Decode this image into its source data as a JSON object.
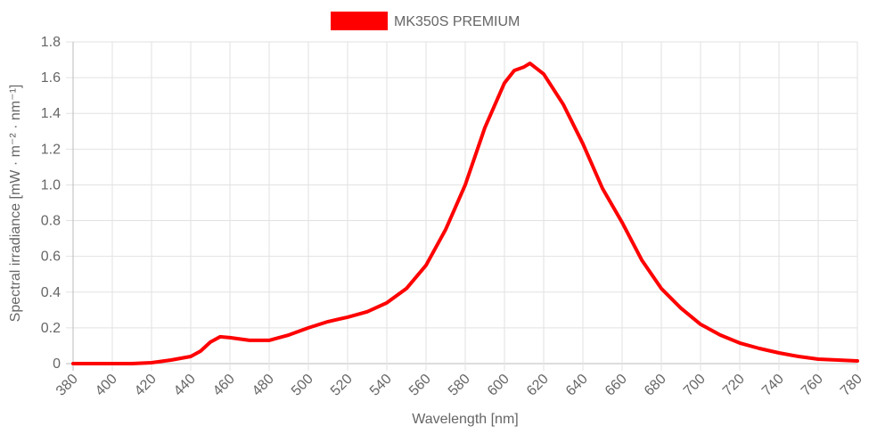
{
  "chart_data": {
    "type": "line",
    "title": "",
    "xlabel": "Wavelength [nm]",
    "ylabel": "Spectral irradiance [mW · m⁻² · nm⁻¹]",
    "xlim": [
      380,
      780
    ],
    "ylim": [
      0,
      1.8
    ],
    "x_ticks": [
      "380",
      "400",
      "420",
      "440",
      "460",
      "480",
      "500",
      "520",
      "540",
      "560",
      "580",
      "600",
      "620",
      "640",
      "660",
      "680",
      "700",
      "720",
      "740",
      "760",
      "780"
    ],
    "y_ticks": [
      "0",
      "0.2",
      "0.4",
      "0.6",
      "0.8",
      "1.0",
      "1.2",
      "1.4",
      "1.6",
      "1.8"
    ],
    "grid": true,
    "legend_position": "top",
    "series": [
      {
        "name": "MK350S PREMIUM",
        "color": "#ff0000",
        "x": [
          380,
          390,
          400,
          410,
          420,
          430,
          440,
          445,
          450,
          455,
          460,
          470,
          480,
          490,
          500,
          510,
          520,
          530,
          540,
          550,
          560,
          570,
          580,
          590,
          600,
          605,
          610,
          613,
          620,
          630,
          640,
          650,
          660,
          670,
          680,
          690,
          700,
          710,
          720,
          730,
          740,
          750,
          760,
          770,
          780
        ],
        "y": [
          0,
          0,
          0,
          0,
          0.005,
          0.02,
          0.04,
          0.07,
          0.12,
          0.15,
          0.145,
          0.13,
          0.13,
          0.16,
          0.2,
          0.235,
          0.26,
          0.29,
          0.34,
          0.42,
          0.55,
          0.75,
          1.0,
          1.32,
          1.57,
          1.64,
          1.66,
          1.68,
          1.62,
          1.45,
          1.23,
          0.98,
          0.79,
          0.58,
          0.42,
          0.31,
          0.22,
          0.16,
          0.115,
          0.085,
          0.06,
          0.04,
          0.025,
          0.02,
          0.015
        ]
      }
    ]
  }
}
